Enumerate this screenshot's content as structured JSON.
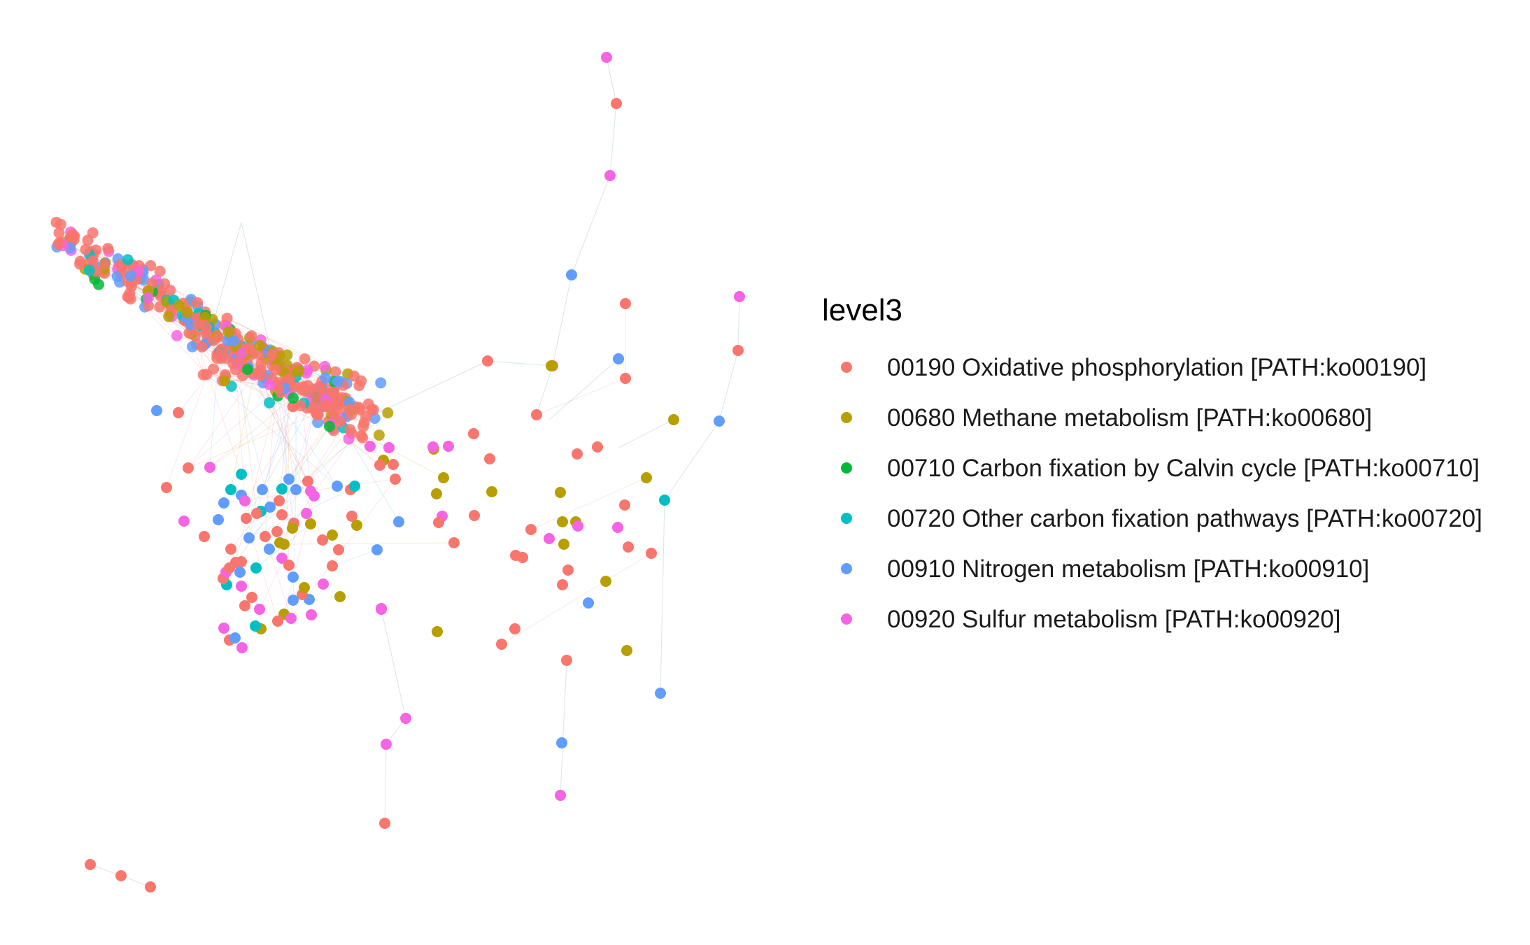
{
  "legend": {
    "title": "level3",
    "items": [
      {
        "label": "00190 Oxidative phosphorylation [PATH:ko00190]",
        "color": "#F8766D"
      },
      {
        "label": "00680 Methane metabolism [PATH:ko00680]",
        "color": "#B79F00"
      },
      {
        "label": "00710 Carbon fixation by Calvin cycle [PATH:ko00710]",
        "color": "#00BA38"
      },
      {
        "label": "00720 Other carbon fixation pathways [PATH:ko00720]",
        "color": "#00BFC4"
      },
      {
        "label": "00910 Nitrogen metabolism [PATH:ko00910]",
        "color": "#619CFF"
      },
      {
        "label": "00920 Sulfur metabolism [PATH:ko00920]",
        "color": "#F564E3"
      }
    ]
  },
  "graph": {
    "type": "network",
    "node_groups": [
      "00190",
      "00680",
      "00710",
      "00720",
      "00910",
      "00920"
    ],
    "edge_style": "faint, colored by category"
  }
}
